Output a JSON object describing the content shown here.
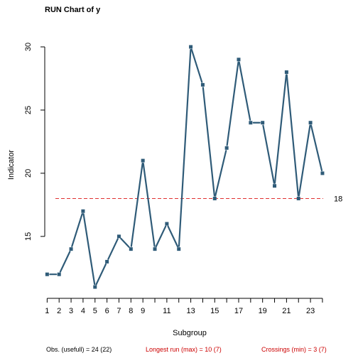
{
  "chart_data": {
    "type": "line",
    "title": "RUN Chart of y",
    "xlabel": "Subgroup",
    "ylabel": "Indicator",
    "x": [
      1,
      2,
      3,
      4,
      5,
      6,
      7,
      8,
      9,
      10,
      11,
      12,
      13,
      14,
      15,
      16,
      17,
      18,
      19,
      20,
      21,
      22,
      23,
      24
    ],
    "values": [
      12,
      12,
      14,
      17,
      11,
      13,
      15,
      14,
      21,
      14,
      16,
      14,
      30,
      27,
      18,
      22,
      29,
      24,
      24,
      19,
      28,
      18,
      24,
      20
    ],
    "x_ticks": [
      1,
      2,
      3,
      4,
      5,
      6,
      7,
      8,
      9,
      11,
      13,
      15,
      17,
      19,
      21,
      23
    ],
    "x_tick_labels": [
      "1",
      "2",
      "3",
      "4",
      "5",
      "6",
      "7",
      "8",
      "9",
      "11",
      "13",
      "15",
      "17",
      "19",
      "21",
      "23"
    ],
    "y_ticks": [
      15,
      20,
      25,
      30
    ],
    "y_tick_labels": [
      "15",
      "20",
      "25",
      "30"
    ],
    "xlim": [
      0.8,
      24.3
    ],
    "ylim": [
      10.1,
      30.9
    ],
    "median": 18,
    "median_label": "18",
    "grid": false,
    "colors": {
      "line": "#2f5b78",
      "median": "#e03030",
      "stat_highlight": "#cc0000"
    }
  },
  "footer": {
    "obs": "Obs. (usefull) = 24 (22)",
    "longest_run": "Longest run (max) = 10 (7)",
    "crossings": "Crossings (min) = 3 (7)"
  }
}
